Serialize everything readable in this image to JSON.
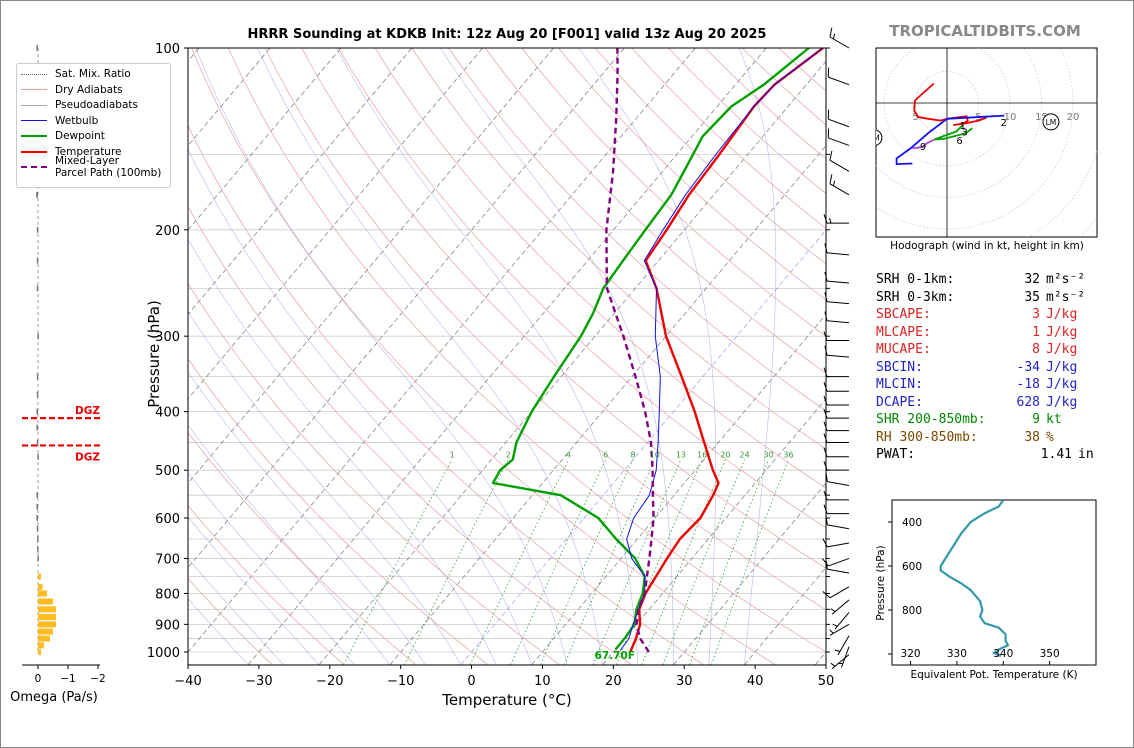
{
  "chart_data": {
    "type": "line",
    "title": "HRRR Sounding at KDKB Init: 12z Aug 20 [F001] valid 13z Aug 20 2025",
    "xlabel": "Temperature (°C)",
    "ylabel": "Pressure (hPa)",
    "xlim": [
      -40,
      50
    ],
    "ylim": [
      1050,
      100
    ],
    "y_scale": "log",
    "x_ticks": [
      "−40",
      "−30",
      "−20",
      "−10",
      "0",
      "10",
      "20",
      "30",
      "40",
      "50"
    ],
    "y_ticks": [
      "100",
      "200",
      "300",
      "400",
      "500",
      "600",
      "700",
      "800",
      "900",
      "1000"
    ],
    "mixing_ratio_labels": [
      "1",
      "2",
      "4",
      "6",
      "8",
      "10",
      "13",
      "16",
      "20",
      "24",
      "30",
      "36"
    ],
    "surface_label": "67.70F",
    "legend": [
      {
        "name": "Sat. Mix. Ratio",
        "color": "#666666"
      },
      {
        "name": "Dry Adiabats",
        "color": "#e8a0a0"
      },
      {
        "name": "Pseudoadiabats",
        "color": "#aaaaaa"
      },
      {
        "name": "Wetbulb",
        "color": "#1010ee"
      },
      {
        "name": "Dewpoint",
        "color": "#00a000"
      },
      {
        "name": "Temperature",
        "color": "#ee0000"
      },
      {
        "name": "Mixed-Layer\nParcel Path (100mb)",
        "color": "#800080"
      }
    ],
    "series": [
      {
        "name": "Temperature",
        "color": "#ee0000",
        "points": [
          [
            22.4,
            1000
          ],
          [
            21.6,
            950
          ],
          [
            20.5,
            900
          ],
          [
            18.6,
            850
          ],
          [
            17.6,
            800
          ],
          [
            16.5,
            700
          ],
          [
            16.0,
            650
          ],
          [
            16.4,
            600
          ],
          [
            15.5,
            550
          ],
          [
            14.8,
            525
          ],
          [
            12.5,
            500
          ],
          [
            8.0,
            450
          ],
          [
            3.0,
            400
          ],
          [
            -3.0,
            350
          ],
          [
            -10.0,
            300
          ],
          [
            -17.0,
            250
          ],
          [
            -21.8,
            225
          ],
          [
            -22.5,
            200
          ],
          [
            -23.5,
            175
          ],
          [
            -24.0,
            150
          ],
          [
            -24.8,
            125
          ],
          [
            -24.5,
            115
          ],
          [
            -22.0,
            100
          ]
        ]
      },
      {
        "name": "Dewpoint",
        "color": "#00a000",
        "points": [
          [
            20.0,
            990
          ],
          [
            20.0,
            950
          ],
          [
            19.7,
            900
          ],
          [
            18.2,
            850
          ],
          [
            17.2,
            800
          ],
          [
            15.5,
            750
          ],
          [
            12.0,
            700
          ],
          [
            7.0,
            650
          ],
          [
            2.0,
            600
          ],
          [
            -6.0,
            550
          ],
          [
            -17.0,
            525
          ],
          [
            -17.5,
            500
          ],
          [
            -17.0,
            480
          ],
          [
            -18.5,
            450
          ],
          [
            -20.0,
            400
          ],
          [
            -21.0,
            350
          ],
          [
            -22.0,
            300
          ],
          [
            -23.0,
            275
          ],
          [
            -24.5,
            250
          ],
          [
            -25.0,
            225
          ],
          [
            -25.5,
            200
          ],
          [
            -26.0,
            175
          ],
          [
            -27.0,
            160
          ],
          [
            -28.5,
            140
          ],
          [
            -28.0,
            125
          ],
          [
            -26.0,
            115
          ],
          [
            -24.0,
            100
          ]
        ]
      },
      {
        "name": "Wetbulb",
        "color": "#1010ee",
        "points": [
          [
            20.8,
            995
          ],
          [
            20.6,
            950
          ],
          [
            19.5,
            900
          ],
          [
            18.5,
            850
          ],
          [
            17.5,
            800
          ],
          [
            15.5,
            750
          ],
          [
            11.5,
            700
          ],
          [
            8.5,
            650
          ],
          [
            7.0,
            600
          ],
          [
            6.5,
            550
          ],
          [
            4.5,
            500
          ],
          [
            1.5,
            450
          ],
          [
            -2.0,
            400
          ],
          [
            -6.0,
            350
          ],
          [
            -11.5,
            300
          ],
          [
            -17.0,
            250
          ],
          [
            -22.0,
            225
          ],
          [
            -23.0,
            200
          ],
          [
            -24.0,
            175
          ],
          [
            -24.5,
            150
          ],
          [
            -24.8,
            125
          ],
          [
            -24.5,
            115
          ],
          [
            -22.0,
            100
          ]
        ]
      },
      {
        "name": "Mixed-Layer Parcel Path (100mb)",
        "color": "#800080",
        "dashed": true,
        "points": [
          [
            25.0,
            1000
          ],
          [
            22.2,
            950
          ],
          [
            20.0,
            900
          ],
          [
            18.5,
            850
          ],
          [
            17.5,
            800
          ],
          [
            15.8,
            750
          ],
          [
            14.0,
            700
          ],
          [
            12.0,
            650
          ],
          [
            9.8,
            600
          ],
          [
            7.0,
            550
          ],
          [
            4.0,
            500
          ],
          [
            0.5,
            450
          ],
          [
            -4.0,
            400
          ],
          [
            -9.5,
            350
          ],
          [
            -16.0,
            300
          ],
          [
            -24.0,
            250
          ],
          [
            -31.0,
            200
          ],
          [
            -37.0,
            160
          ],
          [
            -43.0,
            130
          ],
          [
            -48.0,
            110
          ],
          [
            -51.0,
            100
          ]
        ]
      }
    ],
    "wind_barbs": {
      "pressures": [
        100,
        115,
        135,
        145,
        160,
        175,
        195,
        220,
        245,
        265,
        285,
        305,
        325,
        350,
        370,
        390,
        410,
        430,
        450,
        475,
        500,
        530,
        560,
        590,
        625,
        660,
        700,
        740,
        780,
        820,
        860,
        900,
        940,
        980,
        1010
      ],
      "directions_deg": [
        300,
        290,
        290,
        290,
        300,
        300,
        270,
        275,
        275,
        275,
        275,
        270,
        275,
        270,
        270,
        270,
        270,
        270,
        270,
        270,
        270,
        280,
        270,
        270,
        280,
        260,
        250,
        280,
        240,
        230,
        220,
        240,
        210,
        200,
        230
      ],
      "speeds_kt": [
        15,
        10,
        10,
        10,
        10,
        15,
        15,
        10,
        10,
        10,
        10,
        10,
        10,
        10,
        10,
        10,
        10,
        10,
        10,
        10,
        10,
        10,
        10,
        10,
        10,
        10,
        10,
        10,
        10,
        5,
        5,
        5,
        5,
        5,
        5
      ]
    },
    "omega": {
      "xlabel": "Omega (Pa/s)",
      "x_ticks": [
        "0",
        "−1",
        "−2"
      ],
      "dgz_label": "DGZ",
      "dgz_bounds_hpa": [
        410,
        455
      ],
      "profile": [
        [
          100,
          0.05
        ],
        [
          130,
          0.05
        ],
        [
          150,
          0.06
        ],
        [
          175,
          0.06
        ],
        [
          200,
          0.04
        ],
        [
          225,
          0.04
        ],
        [
          250,
          0.04
        ],
        [
          300,
          0.02
        ],
        [
          350,
          0.04
        ],
        [
          375,
          0.04
        ],
        [
          400,
          0.05
        ],
        [
          425,
          0.05
        ],
        [
          450,
          0.04
        ],
        [
          475,
          0.02
        ],
        [
          550,
          0.05
        ],
        [
          575,
          0.05
        ],
        [
          600,
          0.05
        ],
        [
          625,
          0.04
        ],
        [
          650,
          0.03
        ],
        [
          675,
          0.03
        ],
        [
          700,
          0.02
        ],
        [
          750,
          -0.1
        ],
        [
          780,
          -0.15
        ],
        [
          800,
          -0.3
        ],
        [
          825,
          -0.5
        ],
        [
          850,
          -0.6
        ],
        [
          875,
          -0.6
        ],
        [
          900,
          -0.6
        ],
        [
          925,
          -0.5
        ],
        [
          950,
          -0.4
        ],
        [
          975,
          -0.2
        ],
        [
          1000,
          -0.1
        ]
      ]
    },
    "hodograph": {
      "caption": "Hodograph (wind in kt, height in km)",
      "ring_labels": [
        "5",
        "5",
        "10",
        "15",
        "20"
      ],
      "markers": [
        {
          "label": "1"
        },
        {
          "label": "2"
        },
        {
          "label": "3"
        },
        {
          "label": "6"
        },
        {
          "label": "9"
        }
      ],
      "storm_markers": [
        {
          "label": "LM"
        },
        {
          "label": "RM"
        }
      ]
    },
    "theta_e": {
      "xlabel": "Equivalent Pot. Temperature (K)",
      "ylabel": "Pressure (hPa)",
      "x_ticks": [
        "320",
        "330",
        "340",
        "350"
      ],
      "y_ticks": [
        "400",
        "600",
        "800"
      ],
      "profile": [
        [
          340,
          300
        ],
        [
          339,
          330
        ],
        [
          336,
          360
        ],
        [
          333,
          400
        ],
        [
          331,
          450
        ],
        [
          329.5,
          500
        ],
        [
          328,
          550
        ],
        [
          326.5,
          600
        ],
        [
          326.5,
          620
        ],
        [
          328.5,
          650
        ],
        [
          331,
          680
        ],
        [
          333,
          710
        ],
        [
          334,
          735
        ],
        [
          335,
          760
        ],
        [
          335.5,
          800
        ],
        [
          335,
          830
        ],
        [
          336,
          860
        ],
        [
          339,
          880
        ],
        [
          340.5,
          910
        ],
        [
          340.5,
          940
        ],
        [
          341,
          960
        ],
        [
          339,
          980
        ],
        [
          338,
          995
        ],
        [
          339.5,
          1010
        ]
      ]
    }
  },
  "header": {
    "brand": "TROPICALTIDBITS.COM"
  },
  "stats": [
    {
      "label": "SRH 0-1km:",
      "value": "32",
      "unit": "m²s⁻²",
      "color": "#000000"
    },
    {
      "label": "SRH 0-3km:",
      "value": "35",
      "unit": "m²s⁻²",
      "color": "#000000"
    },
    {
      "label": "SBCAPE:",
      "value": "3",
      "unit": "J/kg",
      "color": "#dd2222"
    },
    {
      "label": "MLCAPE:",
      "value": "1",
      "unit": "J/kg",
      "color": "#dd2222"
    },
    {
      "label": "MUCAPE:",
      "value": "8",
      "unit": "J/kg",
      "color": "#dd2222"
    },
    {
      "label": "SBCIN:",
      "value": "-34",
      "unit": "J/kg",
      "color": "#2222cc"
    },
    {
      "label": "MLCIN:",
      "value": "-18",
      "unit": "J/kg",
      "color": "#2222cc"
    },
    {
      "label": "DCAPE:",
      "value": "628",
      "unit": "J/kg",
      "color": "#2222cc"
    },
    {
      "label": "SHR 200-850mb:",
      "value": "9",
      "unit": "kt",
      "color": "#008800"
    },
    {
      "label": "RH 300-850mb:",
      "value": "38",
      "unit": "%",
      "color": "#7a4a00"
    },
    {
      "label": "PWAT:",
      "value": "1.41",
      "unit": "in",
      "color": "#000000"
    }
  ]
}
